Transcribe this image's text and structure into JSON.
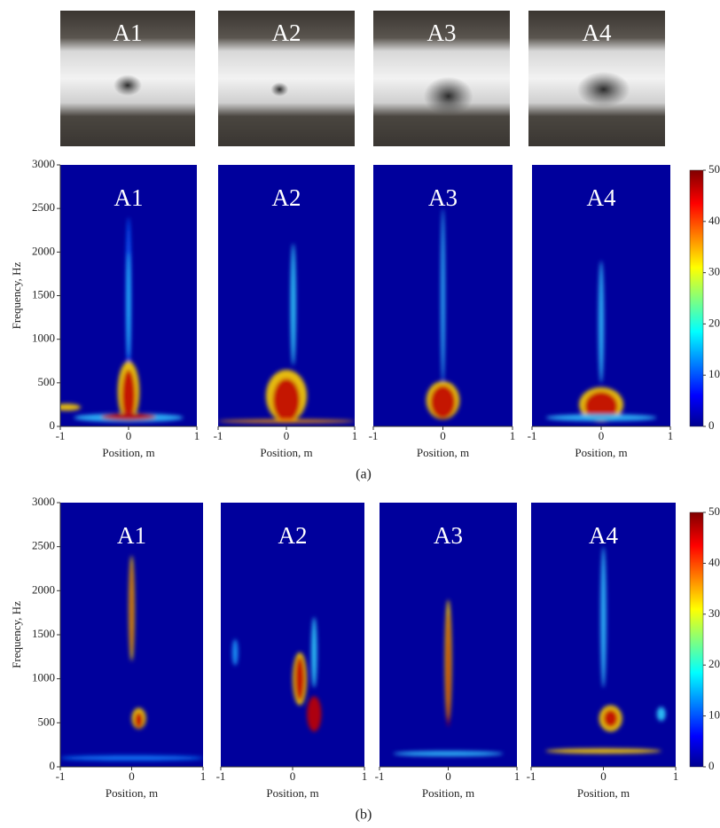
{
  "photos": [
    {
      "label": "A1"
    },
    {
      "label": "A2"
    },
    {
      "label": "A3"
    },
    {
      "label": "A4"
    }
  ],
  "panel_a": {
    "caption": "(a)",
    "y_label": "Frequency, Hz",
    "x_label": "Position, m",
    "ylim": [
      0,
      3000
    ],
    "yticks": [
      0,
      500,
      1000,
      1500,
      2000,
      2500,
      3000
    ],
    "xlim": [
      -1,
      1
    ],
    "xticks": [
      -1,
      0,
      1
    ],
    "colorbar_lim": [
      0,
      50
    ],
    "colorbar_ticks": [
      0,
      10,
      20,
      30,
      40,
      50
    ],
    "plots": [
      {
        "label": "A1"
      },
      {
        "label": "A2"
      },
      {
        "label": "A3"
      },
      {
        "label": "A4"
      }
    ]
  },
  "panel_b": {
    "caption": "(b)",
    "y_label": "Frequency, Hz",
    "x_label": "Position, m",
    "ylim": [
      0,
      3000
    ],
    "yticks": [
      0,
      500,
      1000,
      1500,
      2000,
      2500,
      3000
    ],
    "xlim": [
      -1,
      1
    ],
    "xticks": [
      -1,
      0,
      1
    ],
    "colorbar_lim": [
      0,
      50
    ],
    "colorbar_ticks": [
      0,
      10,
      20,
      30,
      40,
      50
    ],
    "plots": [
      {
        "label": "A1"
      },
      {
        "label": "A2"
      },
      {
        "label": "A3"
      },
      {
        "label": "A4"
      }
    ]
  }
}
